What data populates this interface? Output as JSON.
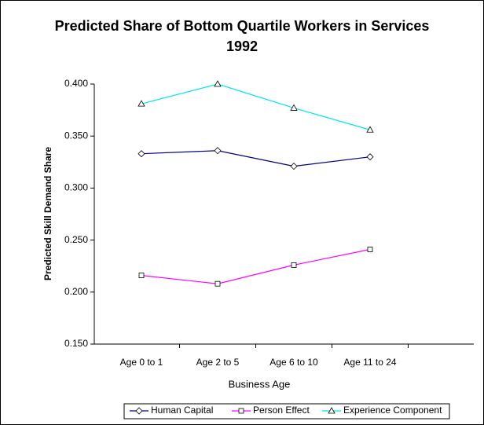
{
  "chart_data": {
    "type": "line",
    "title": "Predicted Share of Bottom Quartile Workers in Services 1992",
    "x_label": "Business Age",
    "y_label": "Predicted Skill Demand Share",
    "categories": [
      "Age 0 to 1",
      "Age 2 to 5",
      "Age 6 to 10",
      "Age 11 to 24"
    ],
    "series": [
      {
        "name": "Human Capital",
        "color": "#000080",
        "marker": "diamond",
        "values": [
          0.333,
          0.336,
          0.321,
          0.33
        ]
      },
      {
        "name": "Person Effect",
        "color": "#ff00ff",
        "marker": "square",
        "values": [
          0.216,
          0.208,
          0.226,
          0.241
        ]
      },
      {
        "name": "Experience Component",
        "color": "#00e5ee",
        "marker": "triangle",
        "values": [
          0.381,
          0.4,
          0.377,
          0.356
        ]
      }
    ],
    "ylim": [
      0.15,
      0.4
    ],
    "yticks": [
      {
        "value": 0.15,
        "label": "0.150"
      },
      {
        "value": 0.2,
        "label": "0.200"
      },
      {
        "value": 0.25,
        "label": "0.250"
      },
      {
        "value": 0.3,
        "label": "0.300"
      },
      {
        "value": 0.35,
        "label": "0.350"
      },
      {
        "value": 0.4,
        "label": "0.400"
      }
    ],
    "grid": false,
    "legend": "bottom"
  }
}
